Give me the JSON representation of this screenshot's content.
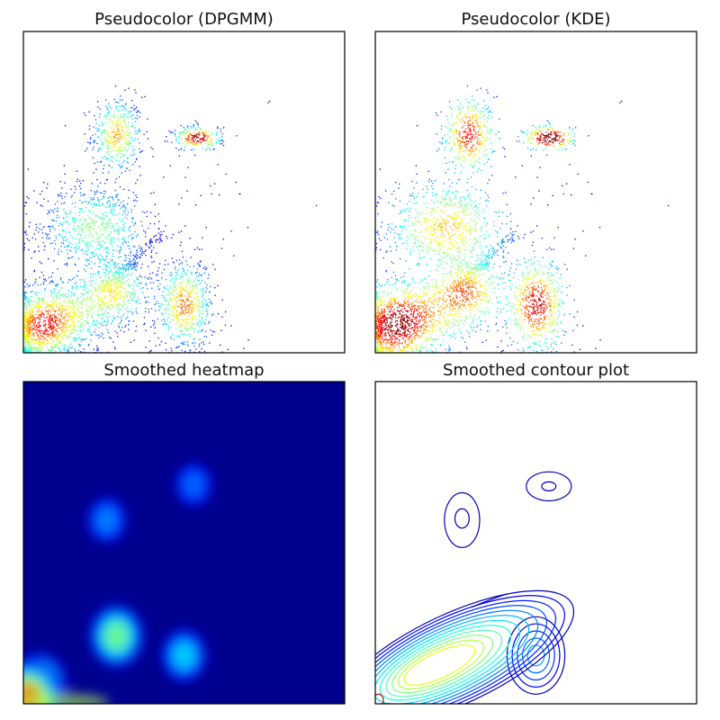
{
  "chart_data": [
    {
      "type": "scatter",
      "title": "Pseudocolor (DPGMM)",
      "colormap": "jet",
      "xlabel": "",
      "ylabel": "",
      "xlim": [
        0,
        1
      ],
      "ylim": [
        0,
        1
      ],
      "ticks": "none",
      "clusters": [
        {
          "cx": 0.29,
          "cy": 0.68,
          "sx": 0.04,
          "sy": 0.06,
          "n": 450
        },
        {
          "cx": 0.22,
          "cy": 0.39,
          "sx": 0.09,
          "sy": 0.07,
          "n": 750
        },
        {
          "cx": 0.05,
          "cy": 0.08,
          "sx": 0.06,
          "sy": 0.06,
          "n": 700
        },
        {
          "cx": 0.14,
          "cy": 0.12,
          "sx": 0.08,
          "sy": 0.06,
          "n": 550
        },
        {
          "cx": 0.28,
          "cy": 0.19,
          "sx": 0.06,
          "sy": 0.05,
          "n": 450
        },
        {
          "cx": 0.5,
          "cy": 0.15,
          "sx": 0.045,
          "sy": 0.07,
          "n": 650
        },
        {
          "cx": 0.54,
          "cy": 0.67,
          "sx": 0.04,
          "sy": 0.02,
          "n": 230
        }
      ]
    },
    {
      "type": "scatter",
      "title": "Pseudocolor (KDE)",
      "colormap": "jet",
      "xlabel": "",
      "ylabel": "",
      "xlim": [
        0,
        1
      ],
      "ylim": [
        0,
        1
      ],
      "ticks": "none"
    },
    {
      "type": "heatmap",
      "title": "Smoothed heatmap",
      "colormap": "jet",
      "xlabel": "",
      "ylabel": "",
      "xlim": [
        0,
        1
      ],
      "ylim": [
        0,
        1
      ],
      "ticks": "none",
      "peaks": [
        {
          "x": 0.29,
          "y": 0.21,
          "value": 0.55
        },
        {
          "x": 0.5,
          "y": 0.15,
          "value": 0.32
        },
        {
          "x": 0.05,
          "y": 0.06,
          "value": 0.55
        },
        {
          "x": 0.01,
          "y": 0.01,
          "value": 1.0
        },
        {
          "x": 0.26,
          "y": 0.57,
          "value": 0.2
        },
        {
          "x": 0.53,
          "y": 0.68,
          "value": 0.16
        }
      ]
    },
    {
      "type": "contour",
      "title": "Smoothed contour plot",
      "colormap": "jet",
      "xlabel": "",
      "ylabel": "",
      "xlim": [
        0,
        1
      ],
      "ylim": [
        0,
        1
      ],
      "ticks": "none",
      "levels": 10
    }
  ],
  "colors": {
    "low": "#00008f",
    "mid": "#00ffff",
    "high": "#ff0000",
    "frame": "#000000"
  }
}
